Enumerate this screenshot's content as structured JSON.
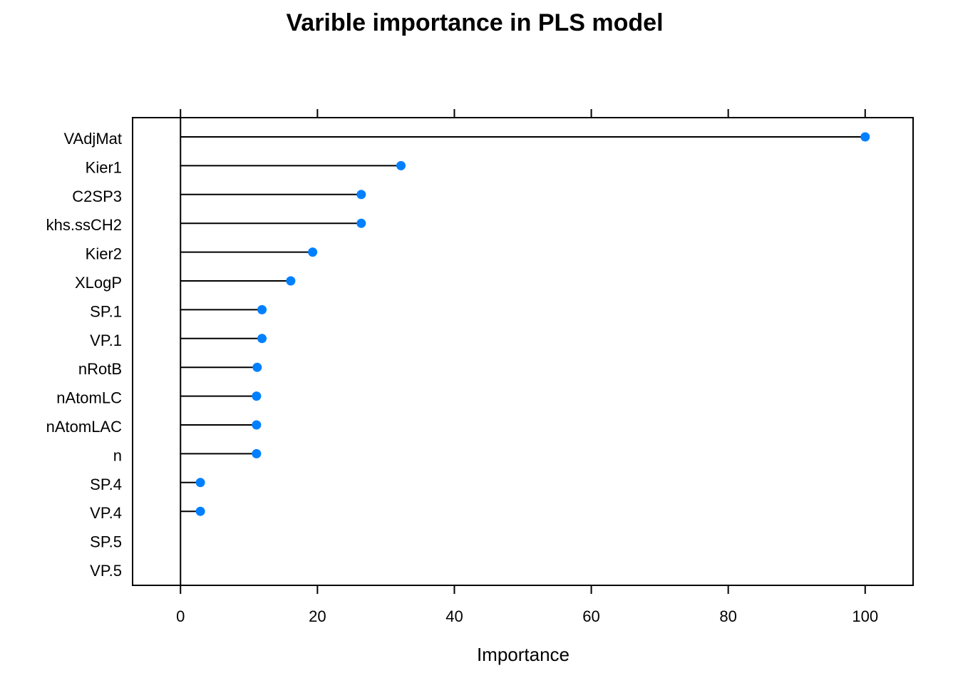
{
  "chart_data": {
    "type": "dot",
    "title": "Varible importance in PLS model",
    "xlabel": "Importance",
    "ylabel": "",
    "xlim": [
      -7,
      107
    ],
    "xticks": [
      0,
      20,
      40,
      60,
      80,
      100
    ],
    "tick_labels": [
      "0",
      "20",
      "40",
      "60",
      "80",
      "100"
    ],
    "categories": [
      "VAdjMat",
      "Kier1",
      "C2SP3",
      "khs.ssCH2",
      "Kier2",
      "XLogP",
      "SP.1",
      "VP.1",
      "nRotB",
      "nAtomLC",
      "nAtomLAC",
      "n",
      "SP.4",
      "VP.4",
      "SP.5",
      "VP.5"
    ],
    "values": [
      100,
      32.2,
      26.4,
      26.4,
      19.3,
      16.1,
      11.9,
      11.9,
      11.2,
      11.1,
      11.1,
      11.1,
      2.9,
      2.9,
      0,
      0
    ],
    "grid": false,
    "colors": {
      "point": "#0080ff",
      "line": "#000000",
      "frame": "#000000"
    }
  }
}
